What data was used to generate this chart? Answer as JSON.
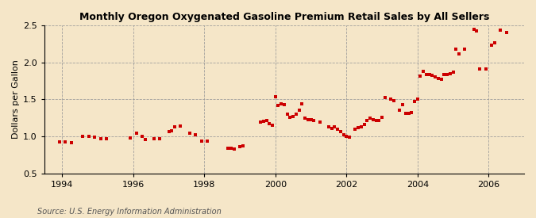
{
  "title": "Monthly Oregon Oxygenated Gasoline Premium Retail Sales by All Sellers",
  "ylabel": "Dollars per Gallon",
  "source": "Source: U.S. Energy Information Administration",
  "background_color": "#f5e6c8",
  "marker_color": "#cc0000",
  "xlim": [
    1993.5,
    2007.0
  ],
  "ylim": [
    0.5,
    2.5
  ],
  "xticks": [
    1994,
    1996,
    1998,
    2000,
    2002,
    2004,
    2006
  ],
  "yticks": [
    0.5,
    1.0,
    1.5,
    2.0,
    2.5
  ],
  "data": [
    [
      1993.917,
      0.93
    ],
    [
      1994.083,
      0.93
    ],
    [
      1994.25,
      0.92
    ],
    [
      1994.583,
      1.0
    ],
    [
      1994.75,
      1.0
    ],
    [
      1994.917,
      0.99
    ],
    [
      1995.083,
      0.97
    ],
    [
      1995.25,
      0.97
    ],
    [
      1995.917,
      0.98
    ],
    [
      1996.083,
      1.04
    ],
    [
      1996.25,
      1.0
    ],
    [
      1996.333,
      0.96
    ],
    [
      1996.583,
      0.97
    ],
    [
      1996.75,
      0.97
    ],
    [
      1997.0,
      1.07
    ],
    [
      1997.083,
      1.08
    ],
    [
      1997.167,
      1.13
    ],
    [
      1997.333,
      1.14
    ],
    [
      1997.583,
      1.04
    ],
    [
      1997.75,
      1.02
    ],
    [
      1997.917,
      0.94
    ],
    [
      1998.083,
      0.94
    ],
    [
      1998.667,
      0.84
    ],
    [
      1998.75,
      0.84
    ],
    [
      1998.833,
      0.83
    ],
    [
      1999.0,
      0.86
    ],
    [
      1999.083,
      0.87
    ],
    [
      1999.583,
      1.19
    ],
    [
      1999.667,
      1.21
    ],
    [
      1999.75,
      1.22
    ],
    [
      1999.833,
      1.17
    ],
    [
      1999.917,
      1.15
    ],
    [
      2000.0,
      1.54
    ],
    [
      2000.083,
      1.42
    ],
    [
      2000.167,
      1.44
    ],
    [
      2000.25,
      1.43
    ],
    [
      2000.333,
      1.3
    ],
    [
      2000.417,
      1.26
    ],
    [
      2000.5,
      1.27
    ],
    [
      2000.583,
      1.3
    ],
    [
      2000.667,
      1.35
    ],
    [
      2000.75,
      1.44
    ],
    [
      2000.833,
      1.25
    ],
    [
      2000.917,
      1.23
    ],
    [
      2001.0,
      1.23
    ],
    [
      2001.083,
      1.22
    ],
    [
      2001.25,
      1.19
    ],
    [
      2001.5,
      1.13
    ],
    [
      2001.583,
      1.11
    ],
    [
      2001.667,
      1.13
    ],
    [
      2001.75,
      1.1
    ],
    [
      2001.833,
      1.07
    ],
    [
      2001.917,
      1.02
    ],
    [
      2002.0,
      1.0
    ],
    [
      2002.083,
      0.99
    ],
    [
      2002.25,
      1.1
    ],
    [
      2002.333,
      1.12
    ],
    [
      2002.417,
      1.13
    ],
    [
      2002.5,
      1.16
    ],
    [
      2002.583,
      1.22
    ],
    [
      2002.667,
      1.25
    ],
    [
      2002.75,
      1.23
    ],
    [
      2002.833,
      1.22
    ],
    [
      2002.917,
      1.22
    ],
    [
      2003.0,
      1.26
    ],
    [
      2003.083,
      1.53
    ],
    [
      2003.25,
      1.5
    ],
    [
      2003.333,
      1.48
    ],
    [
      2003.5,
      1.36
    ],
    [
      2003.583,
      1.43
    ],
    [
      2003.667,
      1.31
    ],
    [
      2003.75,
      1.31
    ],
    [
      2003.833,
      1.32
    ],
    [
      2003.917,
      1.47
    ],
    [
      2004.0,
      1.51
    ],
    [
      2004.083,
      1.82
    ],
    [
      2004.167,
      1.88
    ],
    [
      2004.25,
      1.84
    ],
    [
      2004.333,
      1.84
    ],
    [
      2004.417,
      1.83
    ],
    [
      2004.5,
      1.8
    ],
    [
      2004.583,
      1.78
    ],
    [
      2004.667,
      1.77
    ],
    [
      2004.75,
      1.84
    ],
    [
      2004.833,
      1.84
    ],
    [
      2004.917,
      1.85
    ],
    [
      2005.0,
      1.87
    ],
    [
      2005.083,
      2.18
    ],
    [
      2005.167,
      2.11
    ],
    [
      2005.333,
      2.18
    ],
    [
      2005.583,
      2.45
    ],
    [
      2005.667,
      2.42
    ],
    [
      2005.75,
      1.91
    ],
    [
      2005.917,
      1.91
    ],
    [
      2006.083,
      2.23
    ],
    [
      2006.167,
      2.26
    ],
    [
      2006.333,
      2.43
    ],
    [
      2006.5,
      2.4
    ]
  ]
}
